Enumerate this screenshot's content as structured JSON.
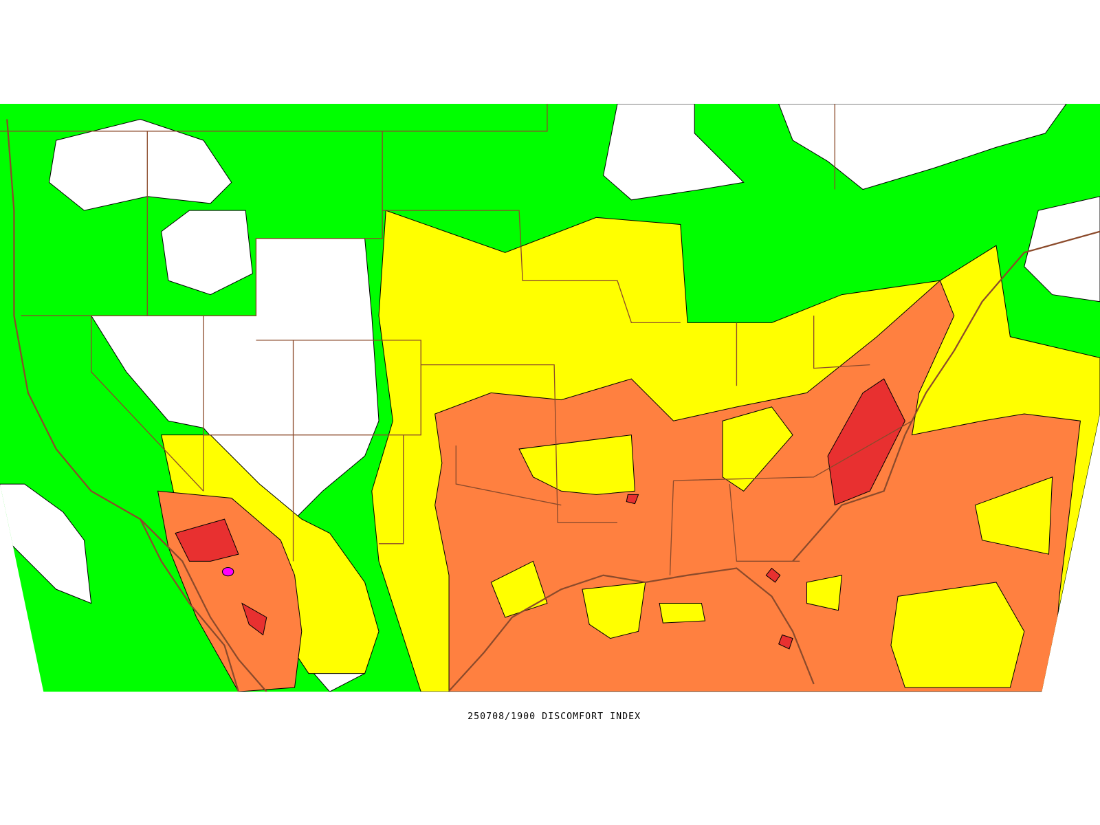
{
  "title": "250708/1900 DISCOMFORT INDEX"
}
